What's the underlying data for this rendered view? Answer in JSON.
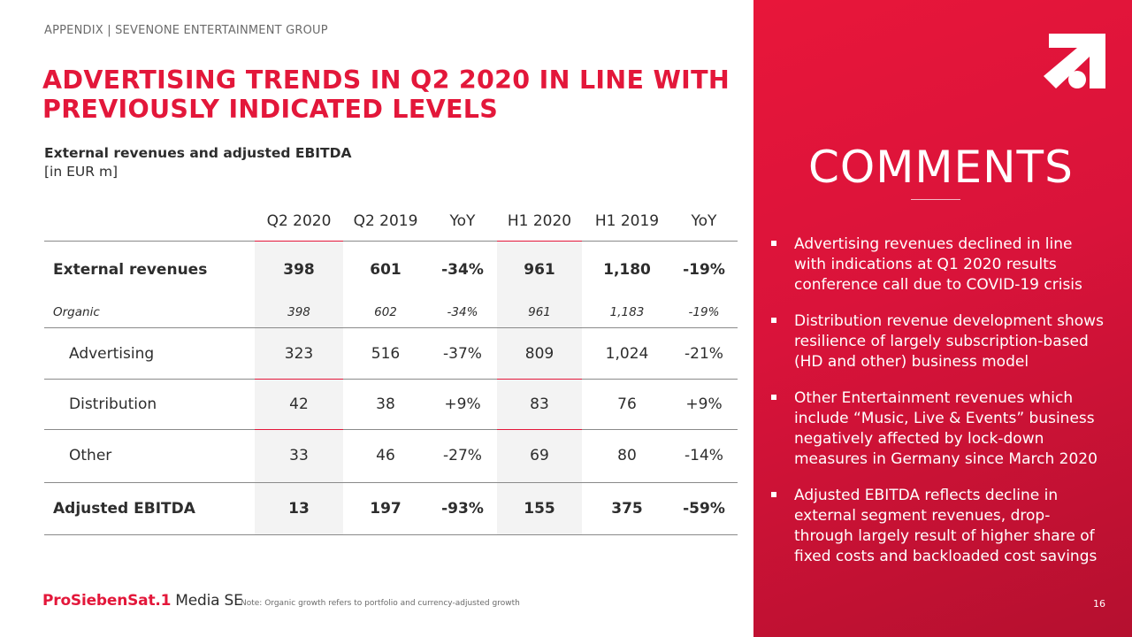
{
  "header": {
    "kicker": "APPENDIX | SEVENONE ENTERTAINMENT GROUP",
    "title": "ADVERTISING TRENDS IN Q2 2020 IN LINE WITH PREVIOUSLY INDICATED LEVELS",
    "subtitle": "External revenues and adjusted EBITDA",
    "unit": "[in EUR m]"
  },
  "table": {
    "columns": [
      "Q2 2020",
      "Q2 2019",
      "YoY",
      "H1 2020",
      "H1 2019",
      "YoY"
    ],
    "rows": [
      {
        "label": "External revenues",
        "values": [
          "398",
          "601",
          "-34%",
          "961",
          "1,180",
          "-19%"
        ]
      },
      {
        "label": "Organic",
        "values": [
          "398",
          "602",
          "-34%",
          "961",
          "1,183",
          "-19%"
        ]
      },
      {
        "label": "Advertising",
        "values": [
          "323",
          "516",
          "-37%",
          "809",
          "1,024",
          "-21%"
        ]
      },
      {
        "label": "Distribution",
        "values": [
          "42",
          "38",
          "+9%",
          "83",
          "76",
          "+9%"
        ]
      },
      {
        "label": "Other",
        "values": [
          "33",
          "46",
          "-27%",
          "69",
          "80",
          "-14%"
        ]
      },
      {
        "label": "Adjusted EBITDA",
        "values": [
          "13",
          "197",
          "-93%",
          "155",
          "375",
          "-59%"
        ]
      }
    ]
  },
  "footer": {
    "brand": "ProSiebenSat.1",
    "brand_suffix": "Media SE",
    "note": "Note: Organic growth refers to portfolio and currency-adjusted growth",
    "page_number": "16"
  },
  "comments": {
    "heading": "COMMENTS",
    "bullets": [
      "Advertising revenues declined in line with indications at Q1 2020 results conference call due to COVID-19 crisis",
      "Distribution revenue development shows resilience of largely subscription-based (HD and other) business model",
      "Other Entertainment revenues which include “Music, Live & Events” business negatively affected by lock-down measures in Germany since March 2020",
      "Adjusted EBITDA reflects decline in external segment revenues, drop-through largely result of higher share of fixed costs and backloaded cost savings"
    ]
  },
  "colors": {
    "brand_red": "#e3173a",
    "panel_red": "#d9133a",
    "text": "#2d2d2d"
  }
}
